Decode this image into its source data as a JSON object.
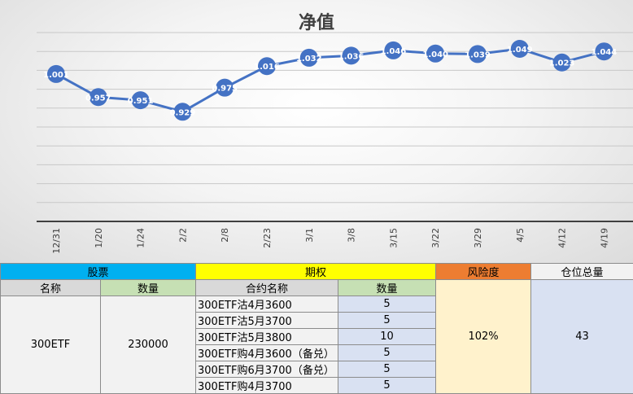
{
  "chart_data": {
    "type": "line",
    "title": "净值",
    "categories": [
      "12/31",
      "1/20",
      "1/24",
      "2/2",
      "2/8",
      "2/23",
      "3/1",
      "3/8",
      "3/15",
      "3/22",
      "3/29",
      "4/5",
      "4/12",
      "4/19"
    ],
    "series": [
      {
        "values": [
          1.001,
          0.957,
          0.951,
          0.929,
          0.975,
          1.016,
          1.032,
          1.036,
          1.046,
          1.04,
          1.039,
          1.049,
          1.023,
          1.044
        ],
        "labels": [
          "1.001",
          "0.957",
          "0.951",
          "0.929",
          "0.975",
          "1.016",
          "1.032",
          "1.036",
          "1.046",
          "1.040",
          "1.039",
          "1.049",
          "1.023",
          "1.044"
        ]
      }
    ],
    "ylim": [
      0.72,
      1.08
    ],
    "grid": true,
    "legend": "none",
    "line_color": "#4472c4",
    "marker_color": "#4472c4"
  },
  "table": {
    "headers": {
      "stock": "股票",
      "options": "期权",
      "risk": "风险度",
      "position": "仓位总量"
    },
    "subheaders": {
      "stock_name": "名称",
      "stock_qty": "数量",
      "contract_name": "合约名称",
      "contract_qty": "数量"
    },
    "stock": {
      "name": "300ETF",
      "qty": "230000"
    },
    "options": [
      {
        "name": "300ETF沽4月3600",
        "qty": "5"
      },
      {
        "name": "300ETF沽5月3700",
        "qty": "5"
      },
      {
        "name": "300ETF沽5月3800",
        "qty": "10"
      },
      {
        "name": "300ETF购4月3600（备兑）",
        "qty": "5"
      },
      {
        "name": "300ETF购6月3700（备兑）",
        "qty": "5"
      },
      {
        "name": "300ETF购4月3700",
        "qty": "5"
      }
    ],
    "risk": "102%",
    "position": "43"
  }
}
